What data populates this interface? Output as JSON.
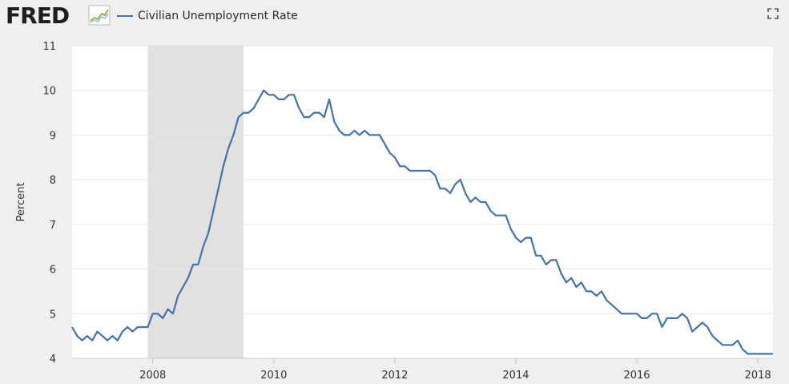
{
  "header": {
    "logo": "FRED",
    "series_title": "Civilian Unemployment Rate"
  },
  "colors": {
    "series": "#4572a7",
    "recession": "#e1e1e1",
    "grid": "#e6e6e6",
    "plot_bg": "#ffffff",
    "page_bg": "#efefef"
  },
  "icons": [
    "fred-chart-icon",
    "expand-icon"
  ],
  "chart_data": {
    "type": "line",
    "ylabel": "Percent",
    "ylim": [
      4,
      11
    ],
    "yticks": [
      4,
      5,
      6,
      7,
      8,
      9,
      10,
      11
    ],
    "xlim": [
      "2006-09",
      "2018-03"
    ],
    "xticks": [
      "2008",
      "2010",
      "2012",
      "2014",
      "2016",
      "2018"
    ],
    "grid": true,
    "recession": {
      "start": "2007-12",
      "end": "2009-06"
    },
    "series": [
      {
        "name": "Civilian Unemployment Rate",
        "start": "2006-09",
        "frequency": "monthly",
        "values": [
          4.7,
          4.5,
          4.4,
          4.5,
          4.4,
          4.6,
          4.5,
          4.4,
          4.5,
          4.4,
          4.6,
          4.7,
          4.6,
          4.7,
          4.7,
          4.7,
          5.0,
          5.0,
          4.9,
          5.1,
          5.0,
          5.4,
          5.6,
          5.8,
          6.1,
          6.1,
          6.5,
          6.8,
          7.3,
          7.8,
          8.3,
          8.7,
          9.0,
          9.4,
          9.5,
          9.5,
          9.6,
          9.8,
          10.0,
          9.9,
          9.9,
          9.8,
          9.8,
          9.9,
          9.9,
          9.6,
          9.4,
          9.4,
          9.5,
          9.5,
          9.4,
          9.8,
          9.3,
          9.1,
          9.0,
          9.0,
          9.1,
          9.0,
          9.1,
          9.0,
          9.0,
          9.0,
          8.8,
          8.6,
          8.5,
          8.3,
          8.3,
          8.2,
          8.2,
          8.2,
          8.2,
          8.2,
          8.1,
          7.8,
          7.8,
          7.7,
          7.9,
          8.0,
          7.7,
          7.5,
          7.6,
          7.5,
          7.5,
          7.3,
          7.2,
          7.2,
          7.2,
          6.9,
          6.7,
          6.6,
          6.7,
          6.7,
          6.3,
          6.3,
          6.1,
          6.2,
          6.2,
          5.9,
          5.7,
          5.8,
          5.6,
          5.7,
          5.5,
          5.5,
          5.4,
          5.5,
          5.3,
          5.2,
          5.1,
          5.0,
          5.0,
          5.0,
          5.0,
          4.9,
          4.9,
          5.0,
          5.0,
          4.7,
          4.9,
          4.9,
          4.9,
          5.0,
          4.9,
          4.6,
          4.7,
          4.8,
          4.7,
          4.5,
          4.4,
          4.3,
          4.3,
          4.3,
          4.4,
          4.2,
          4.1,
          4.1,
          4.1,
          4.1,
          4.1,
          4.1
        ]
      }
    ]
  }
}
